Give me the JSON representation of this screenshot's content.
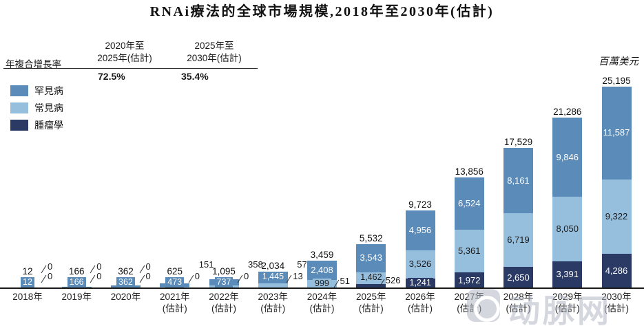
{
  "title": "RNAi療法的全球市場規模,2018年至2030年(估計)",
  "unit_label": "百萬美元",
  "cagr": {
    "row_label": "年複合增長率",
    "columns": [
      {
        "period_line1": "2020年至",
        "period_line2": "2025年(估計)",
        "value": "72.5%"
      },
      {
        "period_line1": "2025年至",
        "period_line2": "2030年(估計)",
        "value": "35.4%"
      }
    ]
  },
  "legend": [
    {
      "label": "罕見病",
      "color": "#5b8bb8"
    },
    {
      "label": "常見病",
      "color": "#96bedd"
    },
    {
      "label": "腫瘤學",
      "color": "#2b3a64"
    }
  ],
  "watermark_text": "动脉网",
  "chart_data": {
    "type": "bar",
    "stacked": true,
    "title": "RNAi療法的全球市場規模,2018年至2030年(估計)",
    "ylabel": "百萬美元",
    "ylim": [
      0,
      26000
    ],
    "grid": false,
    "legend_position": "top-left",
    "categories": [
      [
        "2018年"
      ],
      [
        "2019年"
      ],
      [
        "2020年"
      ],
      [
        "2021年",
        "(估計)"
      ],
      [
        "2022年",
        "(估計)"
      ],
      [
        "2023年",
        "(估計)"
      ],
      [
        "2024年",
        "(估計)"
      ],
      [
        "2025年",
        "(估計)"
      ],
      [
        "2026年",
        "(估計)"
      ],
      [
        "2027年",
        "(估計)"
      ],
      [
        "2028年",
        "(估計)"
      ],
      [
        "2029年",
        "(估計)"
      ],
      [
        "2030年",
        "(估計)"
      ]
    ],
    "series": [
      {
        "name": "罕見病",
        "color": "#5b8bb8",
        "values": [
          12,
          166,
          362,
          473,
          737,
          1445,
          2408,
          3543,
          4956,
          6524,
          8161,
          9846,
          11587
        ]
      },
      {
        "name": "常見病",
        "color": "#96bedd",
        "values": [
          0,
          0,
          0,
          151,
          358,
          576,
          999,
          1462,
          3526,
          5361,
          6719,
          8050,
          9322
        ]
      },
      {
        "name": "腫瘤學",
        "color": "#2b3a64",
        "values": [
          0,
          0,
          0,
          0,
          0,
          13,
          51,
          526,
          1241,
          1972,
          2650,
          3391,
          4286
        ]
      }
    ],
    "totals": [
      12,
      166,
      362,
      625,
      1095,
      2034,
      3459,
      5532,
      9723,
      13856,
      17529,
      21286,
      25195
    ],
    "cagr_2020_2025": "72.5%",
    "cagr_2025_2030": "35.4%"
  }
}
